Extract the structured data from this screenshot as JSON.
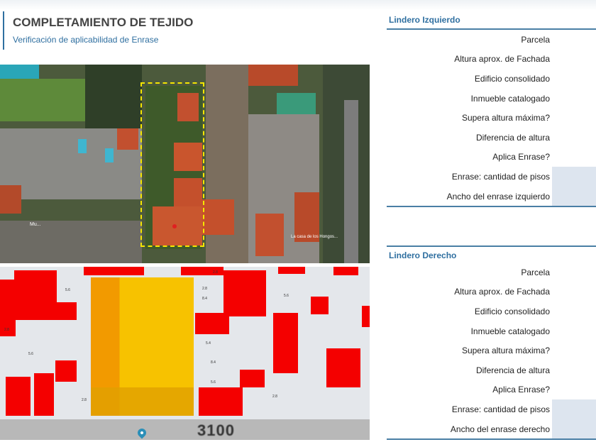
{
  "header": {
    "title": "COMPLETAMIENTO DE TEJIDO",
    "subtitle": "Verificación de aplicabilidad de Enrase"
  },
  "aerial": {
    "labels": [
      "Mu...",
      "La casa de los Hongos..."
    ],
    "selection_color": "#f5e600",
    "marker_color": "#e02020"
  },
  "map3d": {
    "labels": [
      "5.6",
      "2.8",
      "5.6",
      "8.4",
      "2.8",
      "5.6",
      "2.8",
      "5.4",
      "8.4",
      "5.6",
      "2.8",
      "2.8"
    ],
    "highlight_color": "#f7b500",
    "built_color": "#f40000"
  },
  "street": {
    "number": "3100",
    "pin_icon": "location-pin-icon"
  },
  "left": {
    "title": "Lindero Izquierdo",
    "rows": [
      {
        "label": "Parcela",
        "shaded": false
      },
      {
        "label": "Altura aprox. de Fachada",
        "shaded": false
      },
      {
        "label": "Edificio consolidado",
        "shaded": false
      },
      {
        "label": "Inmueble catalogado",
        "shaded": false
      },
      {
        "label": "Supera altura máxima?",
        "shaded": false
      },
      {
        "label": "Diferencia de altura",
        "shaded": false
      },
      {
        "label": "Aplica Enrase?",
        "shaded": false
      },
      {
        "label": "Enrase: cantidad de pisos",
        "shaded": true
      },
      {
        "label": "Ancho del enrase izquierdo",
        "shaded": true
      }
    ]
  },
  "right": {
    "title": "Lindero Derecho",
    "rows": [
      {
        "label": "Parcela",
        "shaded": false
      },
      {
        "label": "Altura aprox. de Fachada",
        "shaded": false
      },
      {
        "label": "Edificio consolidado",
        "shaded": false
      },
      {
        "label": "Inmueble catalogado",
        "shaded": false
      },
      {
        "label": "Supera altura máxima?",
        "shaded": false
      },
      {
        "label": "Diferencia de altura",
        "shaded": false
      },
      {
        "label": "Aplica Enrase?",
        "shaded": false
      },
      {
        "label": "Enrase: cantidad de pisos",
        "shaded": true
      },
      {
        "label": "Ancho del enrase derecho",
        "shaded": true
      }
    ]
  }
}
